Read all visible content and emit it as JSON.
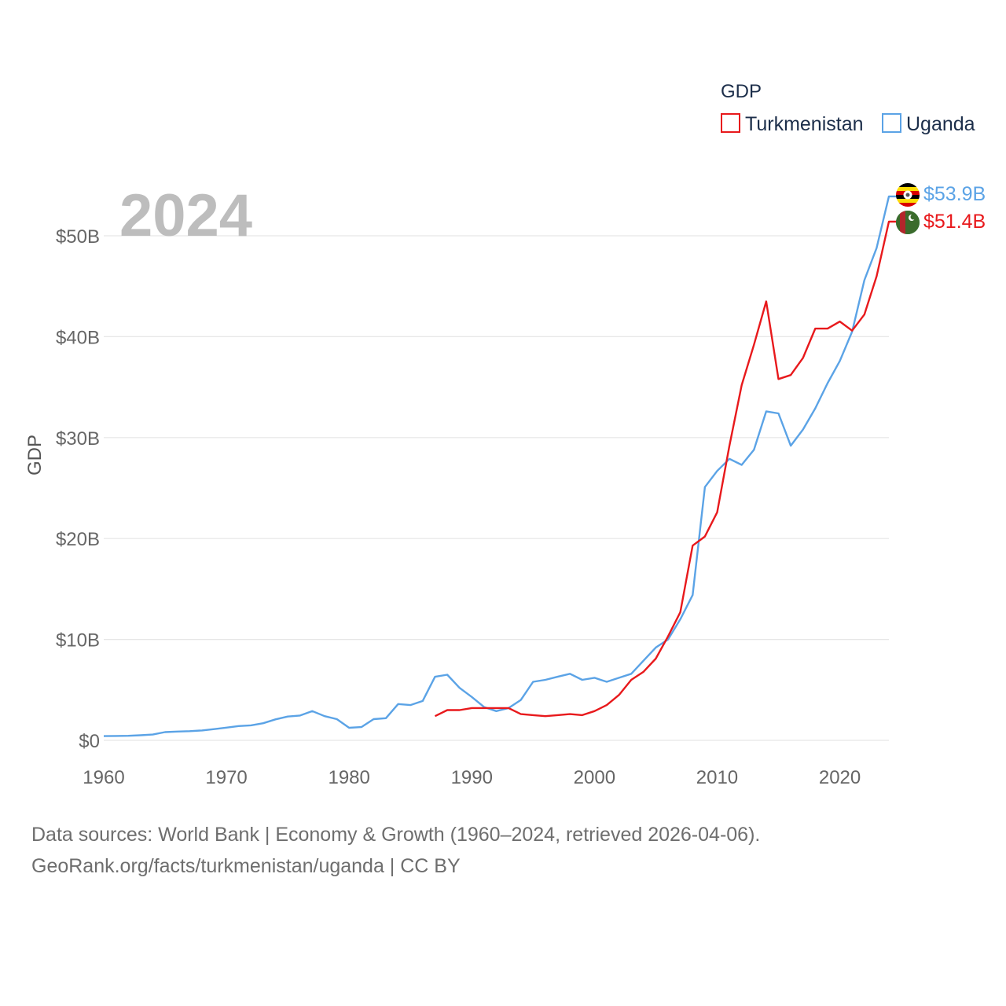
{
  "chart_data": {
    "type": "line",
    "title": "GDP",
    "year_label": "2024",
    "ylabel": "GDP",
    "xlabel": "",
    "xlim": [
      1960,
      2024
    ],
    "ylim": [
      0,
      55
    ],
    "y_unit": "billion USD",
    "x_ticks": [
      1960,
      1970,
      1980,
      1990,
      2000,
      2010,
      2020
    ],
    "x_tick_labels": [
      "1960",
      "1970",
      "1980",
      "1990",
      "2000",
      "2010",
      "2020"
    ],
    "y_ticks": [
      0,
      10,
      20,
      30,
      40,
      50
    ],
    "y_tick_labels": [
      "$0",
      "$10B",
      "$20B",
      "$30B",
      "$40B",
      "$50B"
    ],
    "grid": true,
    "legend": {
      "title": "GDP",
      "position": "top-right"
    },
    "series": [
      {
        "name": "Turkmenistan",
        "color": "#e8191c",
        "end_label": "$51.4B",
        "x": [
          1987,
          1988,
          1989,
          1990,
          1991,
          1992,
          1993,
          1994,
          1995,
          1996,
          1997,
          1998,
          1999,
          2000,
          2001,
          2002,
          2003,
          2004,
          2005,
          2006,
          2007,
          2008,
          2009,
          2010,
          2011,
          2012,
          2013,
          2014,
          2015,
          2016,
          2017,
          2018,
          2019,
          2020,
          2021,
          2022,
          2023,
          2024
        ],
        "values": [
          2.4,
          3.0,
          3.0,
          3.2,
          3.2,
          3.2,
          3.2,
          2.6,
          2.5,
          2.4,
          2.5,
          2.6,
          2.5,
          2.9,
          3.5,
          4.5,
          6.0,
          6.8,
          8.1,
          10.3,
          12.7,
          19.3,
          20.2,
          22.6,
          29.2,
          35.2,
          39.2,
          43.5,
          35.8,
          36.2,
          37.9,
          40.8,
          40.8,
          41.5,
          40.6,
          42.2,
          46.0,
          51.4
        ]
      },
      {
        "name": "Uganda",
        "color": "#5ba3e6",
        "end_label": "$53.9B",
        "x": [
          1960,
          1961,
          1962,
          1963,
          1964,
          1965,
          1966,
          1967,
          1968,
          1969,
          1970,
          1971,
          1972,
          1973,
          1974,
          1975,
          1976,
          1977,
          1978,
          1979,
          1980,
          1981,
          1982,
          1983,
          1984,
          1985,
          1986,
          1987,
          1988,
          1989,
          1990,
          1991,
          1992,
          1993,
          1994,
          1995,
          1996,
          1997,
          1998,
          1999,
          2000,
          2001,
          2002,
          2003,
          2004,
          2005,
          2006,
          2007,
          2008,
          2009,
          2010,
          2011,
          2012,
          2013,
          2014,
          2015,
          2016,
          2017,
          2018,
          2019,
          2020,
          2021,
          2022,
          2023,
          2024
        ],
        "values": [
          0.42,
          0.44,
          0.45,
          0.51,
          0.58,
          0.82,
          0.87,
          0.91,
          0.98,
          1.11,
          1.26,
          1.42,
          1.49,
          1.7,
          2.08,
          2.36,
          2.46,
          2.9,
          2.4,
          2.1,
          1.25,
          1.32,
          2.1,
          2.2,
          3.6,
          3.5,
          3.9,
          6.3,
          6.5,
          5.2,
          4.3,
          3.3,
          2.9,
          3.2,
          4.0,
          5.8,
          6.0,
          6.3,
          6.6,
          6.0,
          6.2,
          5.8,
          6.2,
          6.6,
          7.9,
          9.2,
          10.0,
          12.0,
          14.4,
          25.1,
          26.7,
          27.9,
          27.3,
          28.8,
          32.6,
          32.4,
          29.2,
          30.8,
          32.9,
          35.4,
          37.6,
          40.5,
          45.6,
          48.8,
          53.9
        ]
      }
    ]
  },
  "footer": {
    "line1": "Data sources: World Bank | Economy & Growth (1960–2024, retrieved 2026-04-06).",
    "line2": "GeoRank.org/facts/turkmenistan/uganda | CC BY"
  }
}
